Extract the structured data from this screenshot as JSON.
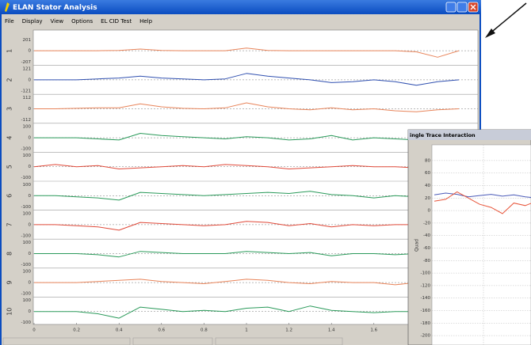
{
  "window": {
    "title": "ELAN Stator Analysis",
    "menu": [
      "File",
      "Display",
      "View",
      "Options",
      "EL CID Test",
      "Help"
    ]
  },
  "chart_data": [
    {
      "type": "line",
      "x": [
        0,
        0.1,
        0.2,
        0.3,
        0.4,
        0.5,
        0.6,
        0.7,
        0.8,
        0.9,
        1.0,
        1.1,
        1.2,
        1.3,
        1.4,
        1.5,
        1.6,
        1.7,
        1.8,
        1.9,
        2.0
      ],
      "xlim": [
        0,
        2.08
      ],
      "xticks": [
        0,
        0.2,
        0.4,
        0.6,
        0.8,
        1,
        1.2,
        1.4,
        1.6
      ],
      "series": [
        {
          "name": "1",
          "color": "#e8845a",
          "ylim": [
            -207,
            201
          ],
          "yticks": [
            201,
            0,
            -207
          ],
          "values": [
            0,
            0,
            0,
            0,
            5,
            30,
            5,
            0,
            0,
            0,
            50,
            5,
            0,
            0,
            0,
            0,
            0,
            0,
            -20,
            -120,
            0
          ]
        },
        {
          "name": "2",
          "color": "#3050b0",
          "ylim": [
            -121,
            121
          ],
          "yticks": [
            121,
            0,
            -121
          ],
          "values": [
            0,
            0,
            0,
            10,
            20,
            40,
            20,
            10,
            0,
            10,
            70,
            40,
            20,
            0,
            -30,
            -20,
            0,
            -20,
            -60,
            -20,
            0
          ]
        },
        {
          "name": "3",
          "color": "#e8845a",
          "ylim": [
            -112,
            112
          ],
          "yticks": [
            112,
            0,
            -112
          ],
          "values": [
            0,
            0,
            5,
            10,
            10,
            50,
            20,
            5,
            0,
            10,
            60,
            20,
            0,
            -10,
            10,
            -10,
            0,
            -20,
            -30,
            -10,
            0
          ]
        },
        {
          "name": "4",
          "color": "#2a9a5a",
          "ylim": [
            -100,
            100
          ],
          "yticks": [
            100,
            0,
            -100
          ],
          "values": [
            0,
            0,
            0,
            -10,
            -20,
            40,
            20,
            10,
            0,
            -10,
            10,
            0,
            -20,
            -10,
            20,
            -20,
            0,
            -10,
            -20,
            0,
            0
          ]
        },
        {
          "name": "5",
          "color": "#e04a3a",
          "ylim": [
            -100,
            100
          ],
          "yticks": [
            100,
            0,
            -100
          ],
          "values": [
            0,
            20,
            0,
            10,
            -20,
            -10,
            0,
            10,
            0,
            20,
            10,
            0,
            -20,
            -10,
            0,
            10,
            0,
            0,
            -10,
            0,
            0
          ]
        },
        {
          "name": "6",
          "color": "#2a9a5a",
          "ylim": [
            -100,
            100
          ],
          "yticks": [
            100,
            0,
            -100
          ],
          "values": [
            0,
            0,
            -10,
            -20,
            -40,
            30,
            20,
            10,
            0,
            10,
            20,
            30,
            20,
            40,
            10,
            0,
            -20,
            0,
            -10,
            10,
            0
          ]
        },
        {
          "name": "7",
          "color": "#e04a3a",
          "ylim": [
            -100,
            100
          ],
          "yticks": [
            100,
            0,
            -100
          ],
          "values": [
            0,
            0,
            -10,
            -20,
            -50,
            20,
            10,
            0,
            -10,
            0,
            30,
            20,
            -10,
            10,
            -20,
            0,
            -10,
            0,
            0,
            0,
            0
          ]
        },
        {
          "name": "8",
          "color": "#2a9a5a",
          "ylim": [
            -100,
            100
          ],
          "yticks": [
            100,
            0,
            -100
          ],
          "values": [
            0,
            0,
            0,
            -10,
            -30,
            20,
            10,
            0,
            0,
            0,
            20,
            10,
            0,
            10,
            -20,
            0,
            0,
            -10,
            0,
            0,
            0
          ]
        },
        {
          "name": "9",
          "color": "#e8845a",
          "ylim": [
            -100,
            100
          ],
          "yticks": [
            100,
            0,
            -100
          ],
          "values": [
            0,
            0,
            0,
            10,
            20,
            30,
            10,
            0,
            -10,
            10,
            30,
            20,
            0,
            -10,
            10,
            0,
            0,
            -20,
            0,
            0,
            0
          ]
        },
        {
          "name": "10",
          "color": "#2a9a5a",
          "ylim": [
            -100,
            100
          ],
          "yticks": [
            100,
            0,
            -100
          ],
          "values": [
            0,
            0,
            0,
            -20,
            -60,
            40,
            20,
            0,
            10,
            0,
            30,
            40,
            0,
            50,
            10,
            0,
            -10,
            0,
            0,
            0,
            0
          ]
        }
      ]
    },
    {
      "type": "line",
      "title": "ingle Trace Interaction",
      "ylabel": "Quad",
      "x": [
        0,
        1,
        2,
        3,
        4,
        5,
        6,
        7,
        8,
        9,
        10,
        11,
        12
      ],
      "xlim": [
        0,
        12
      ],
      "ylim": [
        -210,
        90
      ],
      "yticks": [
        80,
        60,
        40,
        20,
        0,
        -20,
        -40,
        -60,
        -80,
        -100,
        -120,
        -140,
        -160,
        -180,
        -200
      ],
      "series": [
        {
          "color": "#4a5ab8",
          "values": [
            25,
            28,
            26,
            22,
            24,
            26,
            23,
            25,
            22,
            20,
            22,
            24,
            23
          ]
        },
        {
          "color": "#e8553a",
          "values": [
            15,
            18,
            30,
            20,
            10,
            5,
            -5,
            12,
            8,
            15,
            14,
            10,
            12
          ]
        }
      ]
    }
  ]
}
